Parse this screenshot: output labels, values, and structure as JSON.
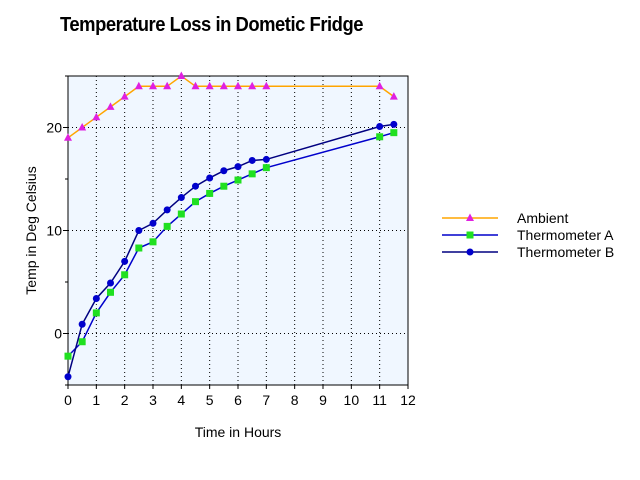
{
  "chart_data": {
    "type": "line",
    "title": "Temperature Loss in Dometic Fridge",
    "xlabel": "Time in Hours",
    "ylabel": "Temp in Deg Celsius",
    "xlim": [
      0,
      12
    ],
    "ylim": [
      -5,
      25
    ],
    "xticks": [
      "0",
      "1",
      "2",
      "3",
      "4",
      "5",
      "6",
      "7",
      "8",
      "9",
      "10",
      "11",
      "12"
    ],
    "yticks": [
      "0",
      "10",
      "20"
    ],
    "grid": true,
    "legend_position": "right",
    "series": [
      {
        "name": "Ambient",
        "color": "#ffa500",
        "marker_color": "#e020e0",
        "marker": "triangle",
        "x": [
          0,
          0.5,
          1,
          1.5,
          2,
          2.5,
          3,
          3.5,
          4,
          4.5,
          5,
          5.5,
          6,
          6.5,
          7,
          11,
          11.5
        ],
        "y": [
          19,
          20,
          21,
          22,
          23,
          24,
          24,
          24,
          25,
          24,
          24,
          24,
          24,
          24,
          24,
          24,
          23
        ]
      },
      {
        "name": "Thermometer A",
        "color": "#0000cc",
        "marker_color": "#20e020",
        "marker": "square",
        "x": [
          0,
          0.5,
          1,
          1.5,
          2,
          2.5,
          3,
          3.5,
          4,
          4.5,
          5,
          5.5,
          6,
          6.5,
          7,
          11,
          11.5
        ],
        "y": [
          -2.2,
          -0.8,
          2,
          4,
          5.7,
          8.3,
          8.9,
          10.4,
          11.6,
          12.8,
          13.6,
          14.3,
          14.9,
          15.5,
          16.1,
          19.1,
          19.5
        ]
      },
      {
        "name": "Thermometer B",
        "color": "#000080",
        "marker_color": "#0000cc",
        "marker": "circle",
        "x": [
          0,
          0.5,
          1,
          1.5,
          2,
          2.5,
          3,
          3.5,
          4,
          4.5,
          5,
          5.5,
          6,
          6.5,
          7,
          11,
          11.5
        ],
        "y": [
          -4.2,
          0.9,
          3.4,
          4.9,
          7,
          10,
          10.7,
          12,
          13.2,
          14.3,
          15.1,
          15.8,
          16.2,
          16.8,
          16.9,
          20.1,
          20.3
        ]
      }
    ]
  }
}
